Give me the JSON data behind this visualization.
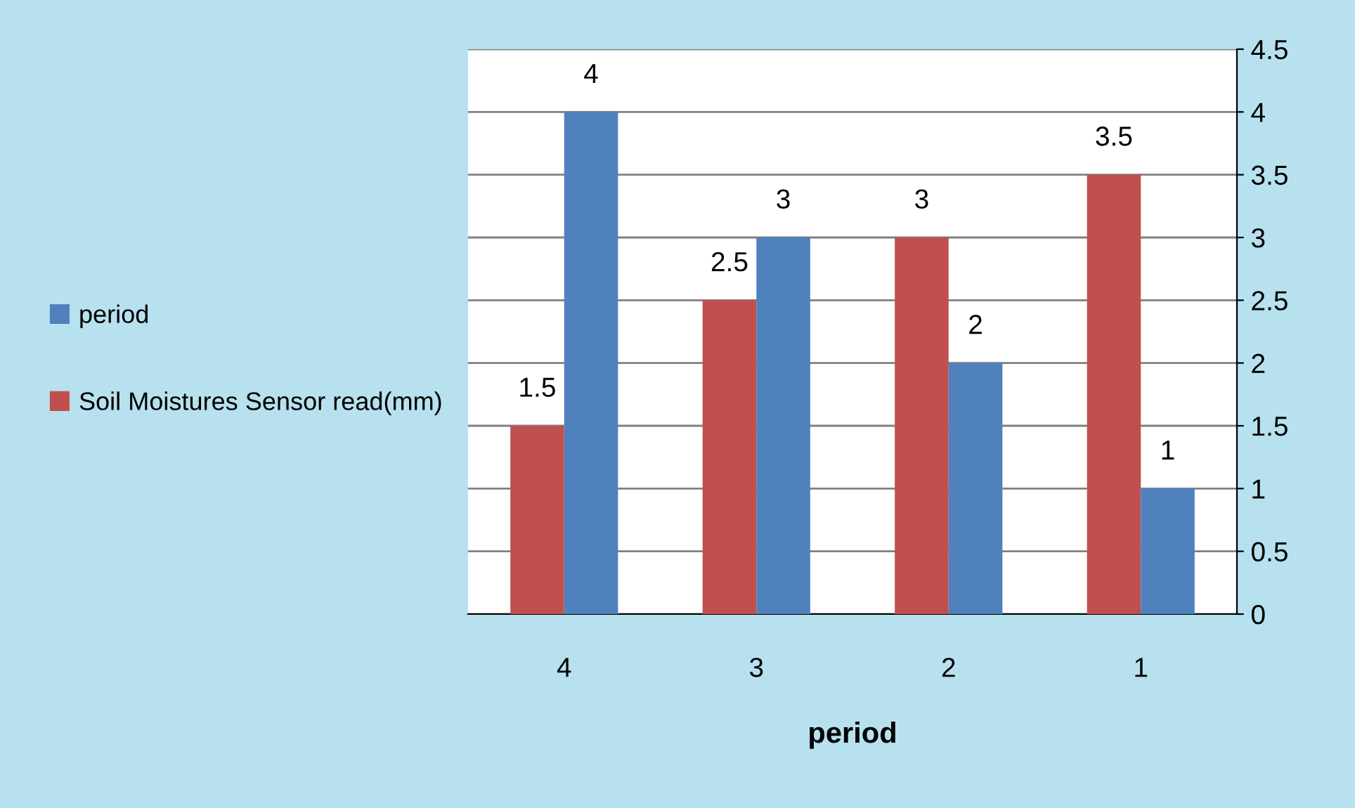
{
  "chart_data": {
    "type": "bar",
    "xlabel": "period",
    "categories": [
      "4",
      "3",
      "2",
      "1"
    ],
    "series": [
      {
        "name": "Soil Moistures Sensor read(mm)",
        "color": "#c0504d",
        "values": [
          1.5,
          2.5,
          3,
          3.5
        ]
      },
      {
        "name": "period",
        "color": "#4f81bd",
        "values": [
          4,
          3,
          2,
          1
        ]
      }
    ],
    "ylim": [
      0,
      4.5
    ],
    "yticks": [
      0,
      0.5,
      1,
      1.5,
      2,
      2.5,
      3,
      3.5,
      4,
      4.5
    ],
    "grid": "y",
    "legend": "left",
    "data_labels": true
  }
}
